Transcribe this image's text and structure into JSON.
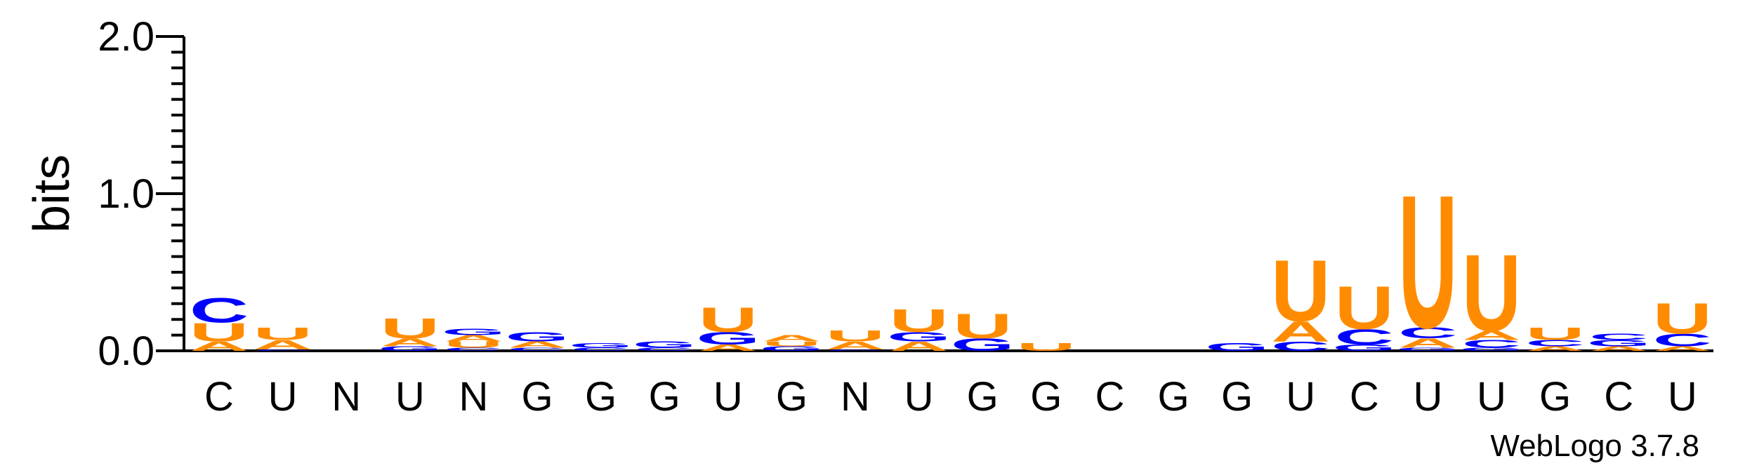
{
  "colors": {
    "U": "#ff8c00",
    "A": "#ff8c00",
    "C": "#0000ff",
    "G": "#0000ff"
  },
  "credit": "WebLogo 3.7.8",
  "chart_data": {
    "type": "sequence-logo",
    "ylabel": "bits",
    "ylim": [
      0,
      2.0
    ],
    "yticks": [
      "0.0",
      "1.0",
      "2.0"
    ],
    "positions": [
      {
        "label": "C",
        "stack": [
          {
            "l": "A",
            "h": 0.06
          },
          {
            "l": "U",
            "h": 0.12
          },
          {
            "l": "C",
            "h": 0.16
          }
        ]
      },
      {
        "label": "U",
        "stack": [
          {
            "l": "C",
            "h": 0.01
          },
          {
            "l": "A",
            "h": 0.06
          },
          {
            "l": "U",
            "h": 0.08
          }
        ]
      },
      {
        "label": "N",
        "stack": []
      },
      {
        "label": "U",
        "stack": [
          {
            "l": "G",
            "h": 0.03
          },
          {
            "l": "A",
            "h": 0.05
          },
          {
            "l": "U",
            "h": 0.13
          }
        ]
      },
      {
        "label": "N",
        "stack": [
          {
            "l": "C",
            "h": 0.02
          },
          {
            "l": "U",
            "h": 0.04
          },
          {
            "l": "A",
            "h": 0.04
          },
          {
            "l": "G",
            "h": 0.04
          }
        ]
      },
      {
        "label": "G",
        "stack": [
          {
            "l": "C",
            "h": 0.02
          },
          {
            "l": "A",
            "h": 0.04
          },
          {
            "l": "G",
            "h": 0.06
          }
        ]
      },
      {
        "label": "G",
        "stack": [
          {
            "l": "C",
            "h": 0.02
          },
          {
            "l": "G",
            "h": 0.03
          }
        ]
      },
      {
        "label": "G",
        "stack": [
          {
            "l": "C",
            "h": 0.02
          },
          {
            "l": "G",
            "h": 0.04
          }
        ]
      },
      {
        "label": "U",
        "stack": [
          {
            "l": "A",
            "h": 0.04
          },
          {
            "l": "G",
            "h": 0.08
          },
          {
            "l": "U",
            "h": 0.16
          }
        ]
      },
      {
        "label": "G",
        "stack": [
          {
            "l": "G",
            "h": 0.03
          },
          {
            "l": "U",
            "h": 0.03
          },
          {
            "l": "A",
            "h": 0.04
          }
        ]
      },
      {
        "label": "N",
        "stack": [
          {
            "l": "C",
            "h": 0.01
          },
          {
            "l": "A",
            "h": 0.05
          },
          {
            "l": "U",
            "h": 0.07
          }
        ]
      },
      {
        "label": "U",
        "stack": [
          {
            "l": "A",
            "h": 0.06
          },
          {
            "l": "G",
            "h": 0.06
          },
          {
            "l": "U",
            "h": 0.15
          }
        ]
      },
      {
        "label": "G",
        "stack": [
          {
            "l": "G",
            "h": 0.08
          },
          {
            "l": "U",
            "h": 0.16
          }
        ]
      },
      {
        "label": "G",
        "stack": [
          {
            "l": "U",
            "h": 0.05
          }
        ]
      },
      {
        "label": "C",
        "stack": []
      },
      {
        "label": "G",
        "stack": []
      },
      {
        "label": "G",
        "stack": [
          {
            "l": "G",
            "h": 0.05
          }
        ]
      },
      {
        "label": "U",
        "stack": [
          {
            "l": "C",
            "h": 0.06
          },
          {
            "l": "A",
            "h": 0.13
          },
          {
            "l": "U",
            "h": 0.4
          }
        ]
      },
      {
        "label": "C",
        "stack": [
          {
            "l": "G",
            "h": 0.04
          },
          {
            "l": "C",
            "h": 0.1
          },
          {
            "l": "U",
            "h": 0.28
          }
        ]
      },
      {
        "label": "U",
        "stack": [
          {
            "l": "G",
            "h": 0.02
          },
          {
            "l": "A",
            "h": 0.06
          },
          {
            "l": "C",
            "h": 0.07
          },
          {
            "l": "U",
            "h": 0.87
          }
        ]
      },
      {
        "label": "U",
        "stack": [
          {
            "l": "G",
            "h": 0.02
          },
          {
            "l": "C",
            "h": 0.05
          },
          {
            "l": "A",
            "h": 0.06
          },
          {
            "l": "U",
            "h": 0.5
          }
        ]
      },
      {
        "label": "G",
        "stack": [
          {
            "l": "A",
            "h": 0.03
          },
          {
            "l": "C",
            "h": 0.04
          },
          {
            "l": "U",
            "h": 0.08
          }
        ]
      },
      {
        "label": "C",
        "stack": [
          {
            "l": "A",
            "h": 0.03
          },
          {
            "l": "G",
            "h": 0.04
          },
          {
            "l": "C",
            "h": 0.04
          }
        ]
      },
      {
        "label": "U",
        "stack": [
          {
            "l": "A",
            "h": 0.03
          },
          {
            "l": "C",
            "h": 0.08
          },
          {
            "l": "U",
            "h": 0.2
          }
        ]
      }
    ]
  }
}
